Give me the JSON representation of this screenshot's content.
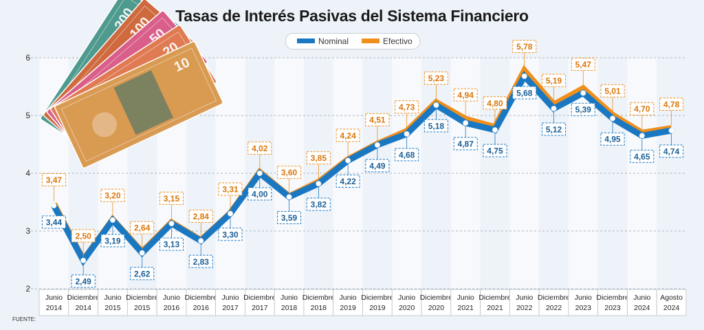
{
  "chart_data": {
    "type": "line",
    "title": "Tasas de Interés Pasivas del Sistema Financiero",
    "categories": [
      [
        "Junio",
        "2014"
      ],
      [
        "Diciembre",
        "2014"
      ],
      [
        "Junio",
        "2015"
      ],
      [
        "Diciembre",
        "2015"
      ],
      [
        "Junio",
        "2016"
      ],
      [
        "Diciembre",
        "2016"
      ],
      [
        "Junio",
        "2017"
      ],
      [
        "Diciembre",
        "2017"
      ],
      [
        "Junio",
        "2018"
      ],
      [
        "Diciembre",
        "2018"
      ],
      [
        "Junio",
        "2019"
      ],
      [
        "Diciembre",
        "2019"
      ],
      [
        "Junio",
        "2020"
      ],
      [
        "Diciembre",
        "2020"
      ],
      [
        "Junio",
        "2021"
      ],
      [
        "Diciembre",
        "2021"
      ],
      [
        "Junio",
        "2022"
      ],
      [
        "Diciembre",
        "2022"
      ],
      [
        "Junio",
        "2023"
      ],
      [
        "Diciembre",
        "2023"
      ],
      [
        "Junio",
        "2024"
      ],
      [
        "Agosto",
        "2024"
      ]
    ],
    "series": [
      {
        "name": "Nominal",
        "color": "#1a78c2",
        "values": [
          3.44,
          2.49,
          3.19,
          2.62,
          3.13,
          2.83,
          3.3,
          4.0,
          3.59,
          3.82,
          4.22,
          4.49,
          4.68,
          5.18,
          4.87,
          4.75,
          5.68,
          5.12,
          5.39,
          4.95,
          4.65,
          4.74
        ],
        "labels": [
          "3,44",
          "2,49",
          "3,19",
          "2,62",
          "3,13",
          "2,83",
          "3,30",
          "4,00",
          "3,59",
          "3,82",
          "4,22",
          "4,49",
          "4,68",
          "5,18",
          "4,87",
          "4,75",
          "5,68",
          "5,12",
          "5,39",
          "4,95",
          "4,65",
          "4,74"
        ]
      },
      {
        "name": "Efectivo",
        "color": "#ef8f1c",
        "values": [
          3.47,
          2.5,
          3.2,
          2.64,
          3.15,
          2.84,
          3.31,
          4.02,
          3.6,
          3.85,
          4.24,
          4.51,
          4.73,
          5.23,
          4.94,
          4.8,
          5.78,
          5.19,
          5.47,
          5.01,
          4.7,
          4.78
        ],
        "labels": [
          "3,47",
          "2,50",
          "3,20",
          "2,64",
          "3,15",
          "2,84",
          "3,31",
          "4,02",
          "3,60",
          "3,85",
          "4,24",
          "4,51",
          "4,73",
          "5,23",
          "4,94",
          "4,80",
          "5,78",
          "5,19",
          "5,47",
          "5,01",
          "4,70",
          "4,78"
        ]
      }
    ],
    "ylim": [
      2,
      6
    ],
    "yticks": [
      "2",
      "3",
      "4",
      "5",
      "6"
    ],
    "legend": "top-center",
    "grid": true
  },
  "footer": {
    "source": "FUENTE:"
  },
  "decoration": {
    "banknote_values": [
      "10",
      "20",
      "50",
      "100",
      "200"
    ]
  }
}
